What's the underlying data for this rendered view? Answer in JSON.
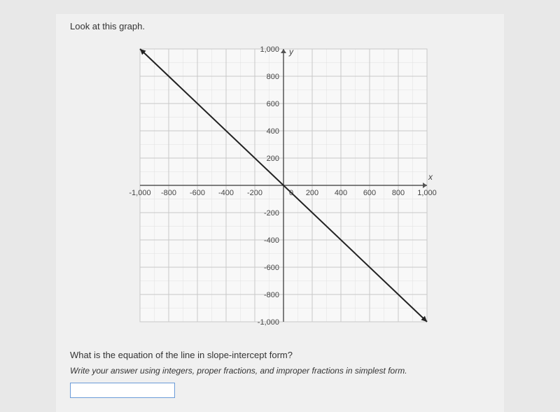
{
  "prompt": "Look at this graph.",
  "question": "What is the equation of the line in slope-intercept form?",
  "instruction": "Write your answer using integers, proper fractions, and improper fractions in simplest form.",
  "answer_value": "",
  "chart": {
    "type": "line",
    "xlim": [
      -1000,
      1000
    ],
    "ylim": [
      -1000,
      1000
    ],
    "tick_step": 200,
    "minor_step": 100,
    "xticks": [
      -1000,
      -800,
      -600,
      -400,
      -200,
      0,
      200,
      400,
      600,
      800,
      1000
    ],
    "yticks": [
      -1000,
      -800,
      -600,
      -400,
      -200,
      200,
      400,
      600,
      800,
      1000
    ],
    "grid_color": "#c8c8c8",
    "minor_grid_color": "#e0e0e0",
    "axis_color": "#555555",
    "line_color": "#222222",
    "line_width": 2,
    "background_color": "#f8f8f8",
    "x_axis_label": "x",
    "y_axis_label": "y",
    "line_points": [
      {
        "x": -1000,
        "y": 1000
      },
      {
        "x": 1000,
        "y": -1000
      }
    ],
    "y_intercept": 0,
    "slope": -1,
    "label_fontsize": 11
  }
}
